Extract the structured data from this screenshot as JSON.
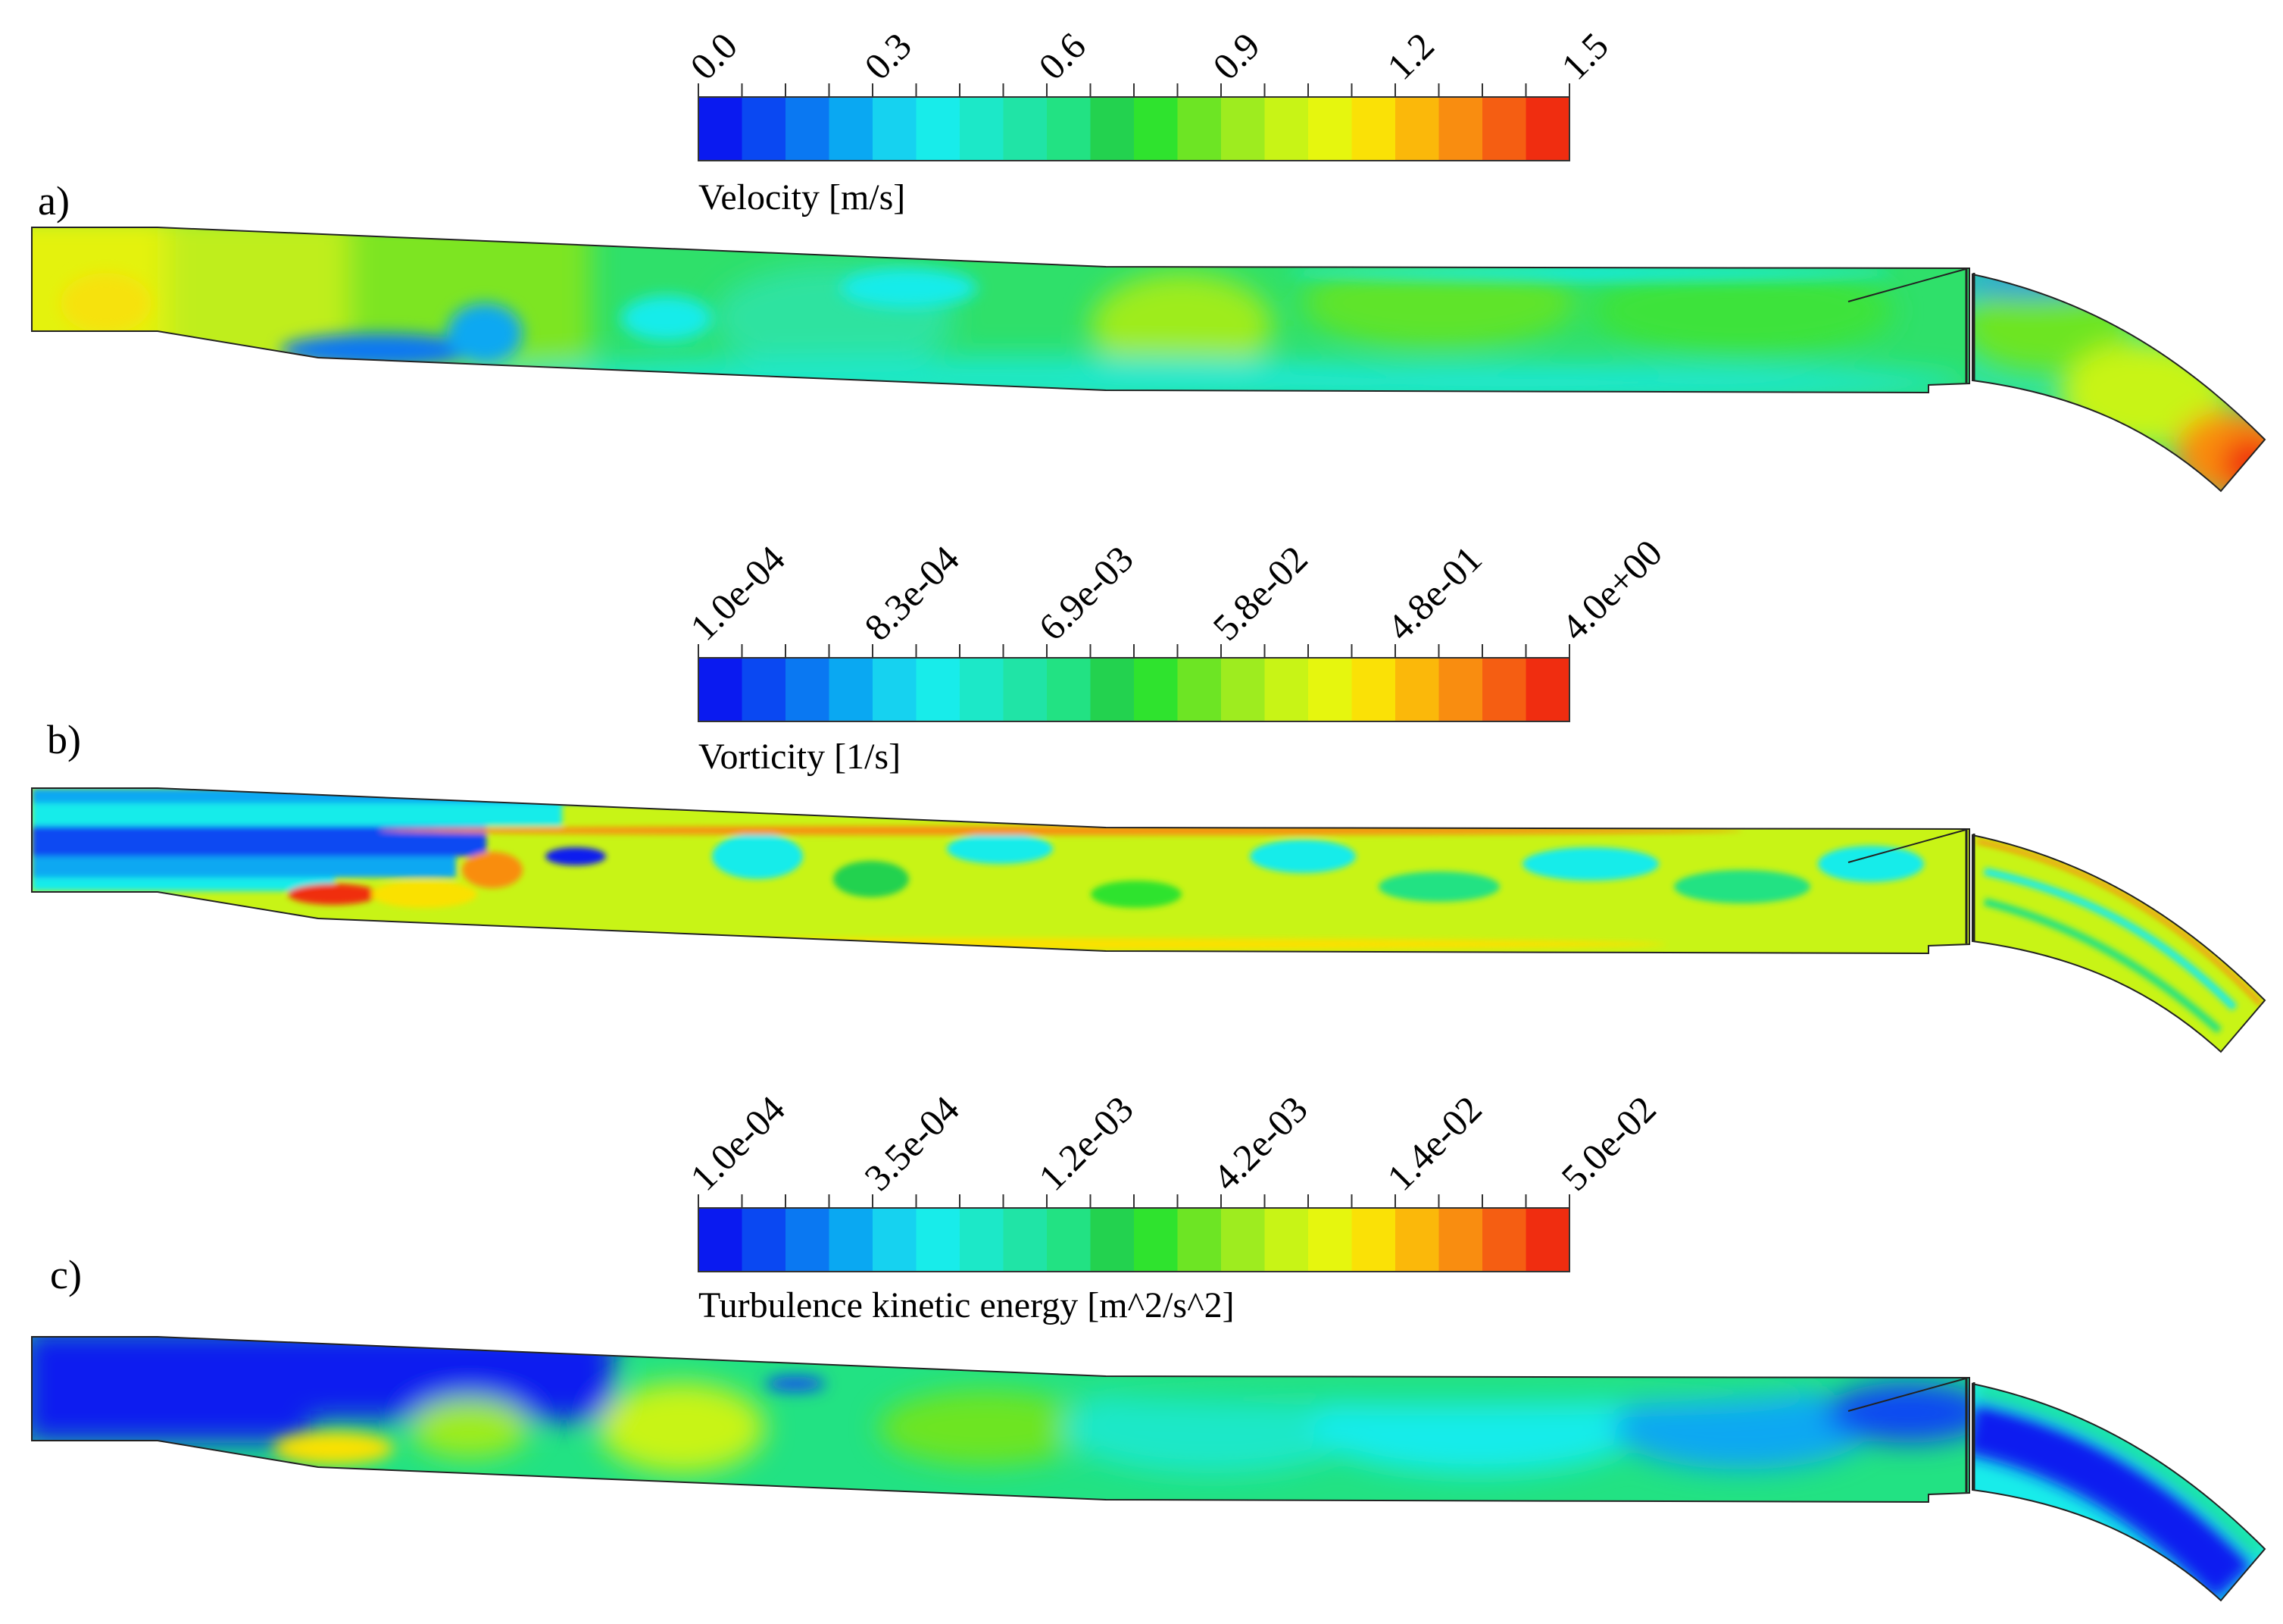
{
  "colormap": [
    "#0a1af0",
    "#0a48f2",
    "#0a78f2",
    "#0aa8f2",
    "#16d2f0",
    "#18ecea",
    "#1ce8c8",
    "#20e4a6",
    "#22e283",
    "#23d24f",
    "#2fe32e",
    "#6de524",
    "#9eec1f",
    "#c8f416",
    "#e6f60e",
    "#fae106",
    "#fbb80a",
    "#f98d10",
    "#f55e12",
    "#f02d10"
  ],
  "panels": [
    {
      "label": "a)",
      "colorbar": {
        "title": "Velocity [m/s]",
        "ticks": [
          "0.0",
          "0.3",
          "0.6",
          "0.9",
          "1.2",
          "1.5"
        ]
      }
    },
    {
      "label": "b)",
      "colorbar": {
        "title": "Vorticity [1/s]",
        "ticks": [
          "1.0e-04",
          "8.3e-04",
          "6.9e-03",
          "5.8e-02",
          "4.8e-01",
          "4.0e+00"
        ]
      }
    },
    {
      "label": "c)",
      "colorbar": {
        "title": "Turbulence kinetic energy [m^2/s^2]",
        "ticks": [
          "1.0e-04",
          "3.5e-04",
          "1.2e-03",
          "4.2e-03",
          "1.4e-02",
          "5.0e-02"
        ]
      }
    }
  ]
}
